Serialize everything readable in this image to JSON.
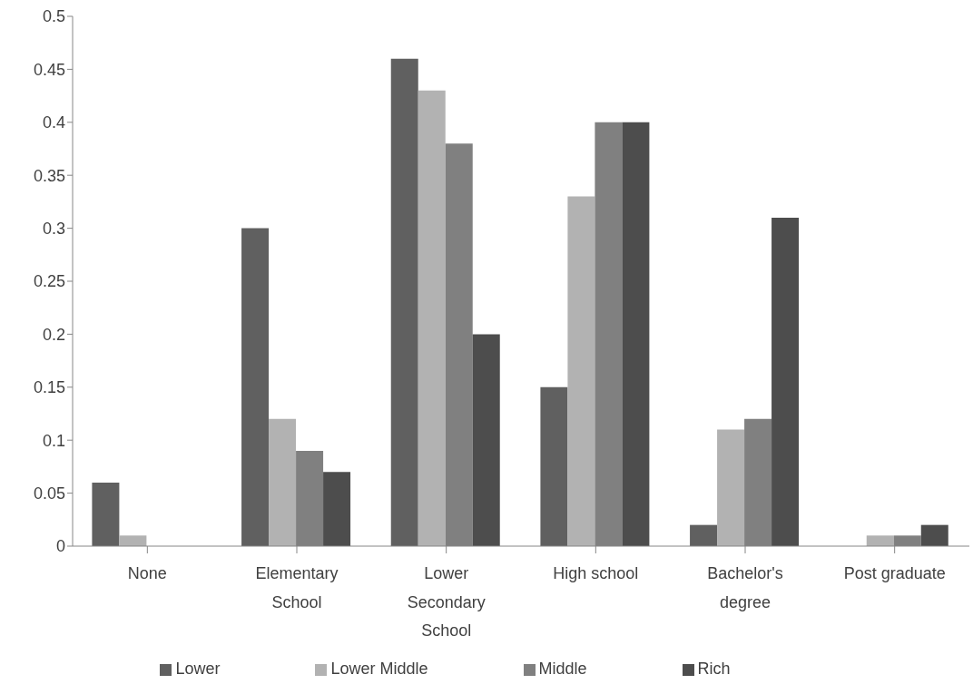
{
  "chart_data": {
    "type": "bar",
    "categories": [
      "None",
      "Elementary School",
      "Lower Secondary School",
      "High school",
      "Bachelor's degree",
      "Post graduate"
    ],
    "series": [
      {
        "name": "Lower",
        "color": "#606060",
        "values": [
          0.06,
          0.3,
          0.46,
          0.15,
          0.02,
          0
        ]
      },
      {
        "name": "Lower Middle",
        "color": "#b2b2b2",
        "values": [
          0.01,
          0.12,
          0.43,
          0.33,
          0.11,
          0.01
        ]
      },
      {
        "name": "Middle",
        "color": "#808080",
        "values": [
          0,
          0.09,
          0.38,
          0.4,
          0.12,
          0.01
        ]
      },
      {
        "name": "Rich",
        "color": "#4d4d4d",
        "values": [
          0,
          0.07,
          0.2,
          0.4,
          0.31,
          0.02
        ]
      }
    ],
    "ylim": [
      0,
      0.5
    ],
    "yticks": [
      0,
      0.05,
      0.1,
      0.15,
      0.2,
      0.25,
      0.3,
      0.35,
      0.4,
      0.45,
      0.5
    ],
    "grid": false,
    "legend": "bottom"
  }
}
